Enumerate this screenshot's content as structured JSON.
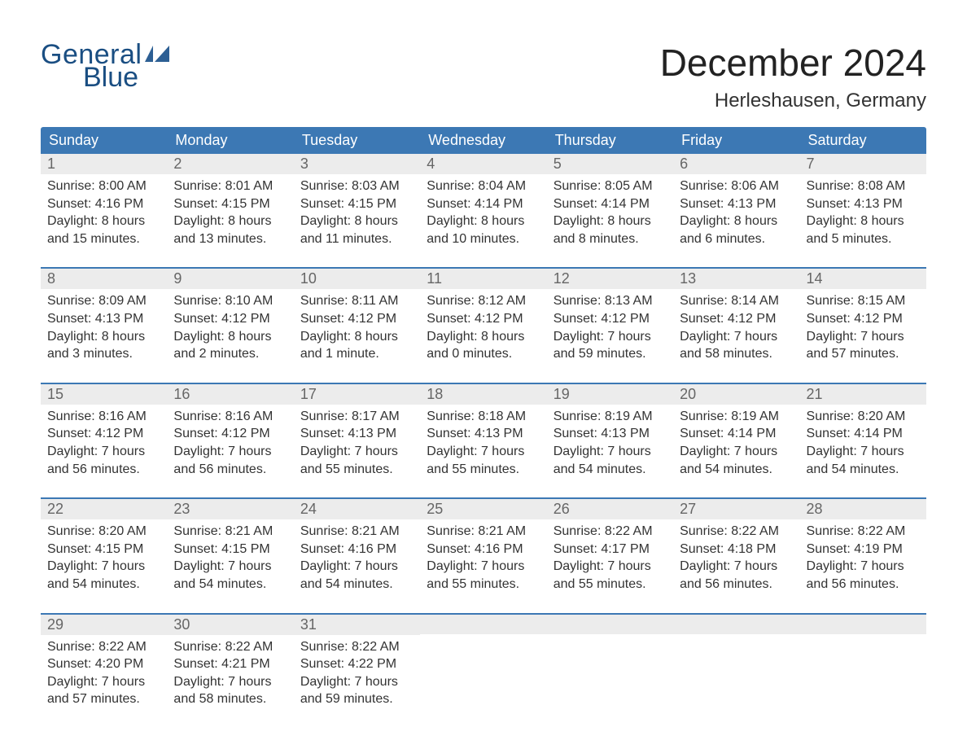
{
  "brand": {
    "line1": "General",
    "line2": "Blue",
    "icon_color": "#2d5f94"
  },
  "title": "December 2024",
  "location": "Herleshausen, Germany",
  "colors": {
    "header_bg": "#3c78b4",
    "header_text": "#ffffff",
    "daynum_bg": "#ececec",
    "rule": "#3c78b4",
    "page_bg": "#ffffff",
    "text": "#333333"
  },
  "typography": {
    "title_fontsize": 46,
    "location_fontsize": 24,
    "dow_fontsize": 18,
    "daynum_fontsize": 18,
    "body_fontsize": 16,
    "font_family": "Arial"
  },
  "days_of_week": [
    "Sunday",
    "Monday",
    "Tuesday",
    "Wednesday",
    "Thursday",
    "Friday",
    "Saturday"
  ],
  "weeks": [
    [
      {
        "n": "1",
        "sunrise": "Sunrise: 8:00 AM",
        "sunset": "Sunset: 4:16 PM",
        "dl1": "Daylight: 8 hours",
        "dl2": "and 15 minutes."
      },
      {
        "n": "2",
        "sunrise": "Sunrise: 8:01 AM",
        "sunset": "Sunset: 4:15 PM",
        "dl1": "Daylight: 8 hours",
        "dl2": "and 13 minutes."
      },
      {
        "n": "3",
        "sunrise": "Sunrise: 8:03 AM",
        "sunset": "Sunset: 4:15 PM",
        "dl1": "Daylight: 8 hours",
        "dl2": "and 11 minutes."
      },
      {
        "n": "4",
        "sunrise": "Sunrise: 8:04 AM",
        "sunset": "Sunset: 4:14 PM",
        "dl1": "Daylight: 8 hours",
        "dl2": "and 10 minutes."
      },
      {
        "n": "5",
        "sunrise": "Sunrise: 8:05 AM",
        "sunset": "Sunset: 4:14 PM",
        "dl1": "Daylight: 8 hours",
        "dl2": "and 8 minutes."
      },
      {
        "n": "6",
        "sunrise": "Sunrise: 8:06 AM",
        "sunset": "Sunset: 4:13 PM",
        "dl1": "Daylight: 8 hours",
        "dl2": "and 6 minutes."
      },
      {
        "n": "7",
        "sunrise": "Sunrise: 8:08 AM",
        "sunset": "Sunset: 4:13 PM",
        "dl1": "Daylight: 8 hours",
        "dl2": "and 5 minutes."
      }
    ],
    [
      {
        "n": "8",
        "sunrise": "Sunrise: 8:09 AM",
        "sunset": "Sunset: 4:13 PM",
        "dl1": "Daylight: 8 hours",
        "dl2": "and 3 minutes."
      },
      {
        "n": "9",
        "sunrise": "Sunrise: 8:10 AM",
        "sunset": "Sunset: 4:12 PM",
        "dl1": "Daylight: 8 hours",
        "dl2": "and 2 minutes."
      },
      {
        "n": "10",
        "sunrise": "Sunrise: 8:11 AM",
        "sunset": "Sunset: 4:12 PM",
        "dl1": "Daylight: 8 hours",
        "dl2": "and 1 minute."
      },
      {
        "n": "11",
        "sunrise": "Sunrise: 8:12 AM",
        "sunset": "Sunset: 4:12 PM",
        "dl1": "Daylight: 8 hours",
        "dl2": "and 0 minutes."
      },
      {
        "n": "12",
        "sunrise": "Sunrise: 8:13 AM",
        "sunset": "Sunset: 4:12 PM",
        "dl1": "Daylight: 7 hours",
        "dl2": "and 59 minutes."
      },
      {
        "n": "13",
        "sunrise": "Sunrise: 8:14 AM",
        "sunset": "Sunset: 4:12 PM",
        "dl1": "Daylight: 7 hours",
        "dl2": "and 58 minutes."
      },
      {
        "n": "14",
        "sunrise": "Sunrise: 8:15 AM",
        "sunset": "Sunset: 4:12 PM",
        "dl1": "Daylight: 7 hours",
        "dl2": "and 57 minutes."
      }
    ],
    [
      {
        "n": "15",
        "sunrise": "Sunrise: 8:16 AM",
        "sunset": "Sunset: 4:12 PM",
        "dl1": "Daylight: 7 hours",
        "dl2": "and 56 minutes."
      },
      {
        "n": "16",
        "sunrise": "Sunrise: 8:16 AM",
        "sunset": "Sunset: 4:12 PM",
        "dl1": "Daylight: 7 hours",
        "dl2": "and 56 minutes."
      },
      {
        "n": "17",
        "sunrise": "Sunrise: 8:17 AM",
        "sunset": "Sunset: 4:13 PM",
        "dl1": "Daylight: 7 hours",
        "dl2": "and 55 minutes."
      },
      {
        "n": "18",
        "sunrise": "Sunrise: 8:18 AM",
        "sunset": "Sunset: 4:13 PM",
        "dl1": "Daylight: 7 hours",
        "dl2": "and 55 minutes."
      },
      {
        "n": "19",
        "sunrise": "Sunrise: 8:19 AM",
        "sunset": "Sunset: 4:13 PM",
        "dl1": "Daylight: 7 hours",
        "dl2": "and 54 minutes."
      },
      {
        "n": "20",
        "sunrise": "Sunrise: 8:19 AM",
        "sunset": "Sunset: 4:14 PM",
        "dl1": "Daylight: 7 hours",
        "dl2": "and 54 minutes."
      },
      {
        "n": "21",
        "sunrise": "Sunrise: 8:20 AM",
        "sunset": "Sunset: 4:14 PM",
        "dl1": "Daylight: 7 hours",
        "dl2": "and 54 minutes."
      }
    ],
    [
      {
        "n": "22",
        "sunrise": "Sunrise: 8:20 AM",
        "sunset": "Sunset: 4:15 PM",
        "dl1": "Daylight: 7 hours",
        "dl2": "and 54 minutes."
      },
      {
        "n": "23",
        "sunrise": "Sunrise: 8:21 AM",
        "sunset": "Sunset: 4:15 PM",
        "dl1": "Daylight: 7 hours",
        "dl2": "and 54 minutes."
      },
      {
        "n": "24",
        "sunrise": "Sunrise: 8:21 AM",
        "sunset": "Sunset: 4:16 PM",
        "dl1": "Daylight: 7 hours",
        "dl2": "and 54 minutes."
      },
      {
        "n": "25",
        "sunrise": "Sunrise: 8:21 AM",
        "sunset": "Sunset: 4:16 PM",
        "dl1": "Daylight: 7 hours",
        "dl2": "and 55 minutes."
      },
      {
        "n": "26",
        "sunrise": "Sunrise: 8:22 AM",
        "sunset": "Sunset: 4:17 PM",
        "dl1": "Daylight: 7 hours",
        "dl2": "and 55 minutes."
      },
      {
        "n": "27",
        "sunrise": "Sunrise: 8:22 AM",
        "sunset": "Sunset: 4:18 PM",
        "dl1": "Daylight: 7 hours",
        "dl2": "and 56 minutes."
      },
      {
        "n": "28",
        "sunrise": "Sunrise: 8:22 AM",
        "sunset": "Sunset: 4:19 PM",
        "dl1": "Daylight: 7 hours",
        "dl2": "and 56 minutes."
      }
    ],
    [
      {
        "n": "29",
        "sunrise": "Sunrise: 8:22 AM",
        "sunset": "Sunset: 4:20 PM",
        "dl1": "Daylight: 7 hours",
        "dl2": "and 57 minutes."
      },
      {
        "n": "30",
        "sunrise": "Sunrise: 8:22 AM",
        "sunset": "Sunset: 4:21 PM",
        "dl1": "Daylight: 7 hours",
        "dl2": "and 58 minutes."
      },
      {
        "n": "31",
        "sunrise": "Sunrise: 8:22 AM",
        "sunset": "Sunset: 4:22 PM",
        "dl1": "Daylight: 7 hours",
        "dl2": "and 59 minutes."
      },
      {
        "empty": true
      },
      {
        "empty": true
      },
      {
        "empty": true
      },
      {
        "empty": true
      }
    ]
  ]
}
